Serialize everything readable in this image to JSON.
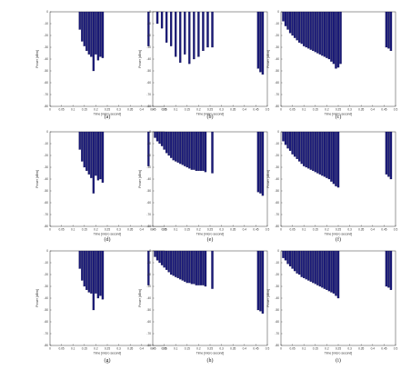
{
  "chart_data": [
    {
      "type": "bar",
      "caption": "(a)",
      "xlabel": "Time [micro second]",
      "ylabel": "Power [dBm]",
      "xlim": [
        0,
        0.5
      ],
      "ylim": [
        -80,
        0
      ],
      "xticks": [
        "0",
        "0.05",
        "0.1",
        "0.15",
        "0.2",
        "0.25",
        "0.3",
        "0.35",
        "0.4",
        "0.45",
        "0.5"
      ],
      "yticks": [
        "0",
        "-10",
        "-20",
        "-30",
        "-40",
        "-50",
        "-60",
        "-70",
        "-80"
      ],
      "x": [
        0.13,
        0.14,
        0.15,
        0.16,
        0.17,
        0.18,
        0.19,
        0.2,
        0.21,
        0.22,
        0.23,
        0.43
      ],
      "values": [
        -15,
        -25,
        -29,
        -33,
        -36,
        -38,
        -50,
        -36,
        -41,
        -38,
        -39,
        -29
      ]
    },
    {
      "type": "bar",
      "caption": "(b)",
      "xlabel": "Time [micro second]",
      "ylabel": "Power [dBm]",
      "xlim": [
        0,
        0.5
      ],
      "ylim": [
        -80,
        0
      ],
      "xticks": [
        "0",
        "0.05",
        "0.1",
        "0.15",
        "0.2",
        "0.25",
        "0.3",
        "0.35",
        "0.4",
        "0.45",
        "0.5"
      ],
      "yticks": [
        "0",
        "-10",
        "-20",
        "-30",
        "-40",
        "-50",
        "-60",
        "-70",
        "-80"
      ],
      "x": [
        0.02,
        0.04,
        0.06,
        0.08,
        0.1,
        0.12,
        0.14,
        0.16,
        0.18,
        0.2,
        0.22,
        0.24,
        0.26,
        0.46,
        0.47,
        0.48
      ],
      "values": [
        -10,
        -14,
        -26,
        -29,
        -38,
        -43,
        -36,
        -44,
        -40,
        -38,
        -33,
        -30,
        -30,
        -48,
        -51,
        -53
      ]
    },
    {
      "type": "bar",
      "caption": "(c)",
      "xlabel": "Time [micro second]",
      "ylabel": "Power [dBm]",
      "xlim": [
        0,
        0.5
      ],
      "ylim": [
        -80,
        0
      ],
      "xticks": [
        "0",
        "0.05",
        "0.1",
        "0.15",
        "0.2",
        "0.25",
        "0.3",
        "0.35",
        "0.4",
        "0.45",
        "0.5"
      ],
      "yticks": [
        "0",
        "-10",
        "-20",
        "-30",
        "-40",
        "-50",
        "-60",
        "-70",
        "-80"
      ],
      "x": [
        0.01,
        0.02,
        0.03,
        0.04,
        0.05,
        0.06,
        0.07,
        0.08,
        0.09,
        0.1,
        0.11,
        0.12,
        0.13,
        0.14,
        0.15,
        0.16,
        0.17,
        0.18,
        0.19,
        0.2,
        0.21,
        0.22,
        0.23,
        0.24,
        0.25,
        0.26,
        0.46,
        0.47,
        0.48
      ],
      "values": [
        -8,
        -12,
        -15,
        -18,
        -20,
        -22,
        -24,
        -26,
        -27,
        -29,
        -30,
        -31,
        -32,
        -33,
        -34,
        -35,
        -36,
        -37,
        -38,
        -39,
        -40,
        -42,
        -44,
        -48,
        -47,
        -44,
        -30,
        -31,
        -33
      ]
    },
    {
      "type": "bar",
      "caption": "(d)",
      "xlabel": "Time [micro second]",
      "ylabel": "Power [dBm]",
      "xlim": [
        0,
        0.5
      ],
      "ylim": [
        -80,
        0
      ],
      "xticks": [
        "0",
        "0.05",
        "0.1",
        "0.15",
        "0.2",
        "0.25",
        "0.3",
        "0.35",
        "0.4",
        "0.45",
        "0.5"
      ],
      "yticks": [
        "0",
        "-10",
        "-20",
        "-30",
        "-40",
        "-50",
        "-60",
        "-70",
        "-80"
      ],
      "x": [
        0.13,
        0.14,
        0.15,
        0.16,
        0.17,
        0.18,
        0.19,
        0.2,
        0.21,
        0.22,
        0.23,
        0.43
      ],
      "values": [
        -15,
        -25,
        -30,
        -33,
        -36,
        -39,
        -52,
        -37,
        -41,
        -40,
        -43,
        -29
      ]
    },
    {
      "type": "bar",
      "caption": "(e)",
      "xlabel": "Time [micro second]",
      "ylabel": "Power [dBm]",
      "xlim": [
        0,
        0.5
      ],
      "ylim": [
        -80,
        0
      ],
      "xticks": [
        "0",
        "0.05",
        "0.1",
        "0.15",
        "0.2",
        "0.25",
        "0.3",
        "0.35",
        "0.4",
        "0.45",
        "0.5"
      ],
      "yticks": [
        "0",
        "-10",
        "-20",
        "-30",
        "-40",
        "-50",
        "-60",
        "-70",
        "-80"
      ],
      "x": [
        0.01,
        0.02,
        0.03,
        0.04,
        0.05,
        0.06,
        0.07,
        0.08,
        0.09,
        0.1,
        0.11,
        0.12,
        0.13,
        0.14,
        0.15,
        0.16,
        0.17,
        0.18,
        0.19,
        0.2,
        0.21,
        0.22,
        0.23,
        0.26,
        0.46,
        0.47,
        0.48
      ],
      "values": [
        -5,
        -8,
        -10,
        -12,
        -15,
        -18,
        -20,
        -22,
        -24,
        -25,
        -26,
        -27,
        -28,
        -29,
        -30,
        -31,
        -32,
        -32,
        -33,
        -33,
        -33,
        -33,
        -34,
        -35,
        -51,
        -52,
        -54
      ]
    },
    {
      "type": "bar",
      "caption": "(f)",
      "xlabel": "Time [micro second]",
      "ylabel": "Power [dBm]",
      "xlim": [
        0,
        0.5
      ],
      "ylim": [
        -80,
        0
      ],
      "xticks": [
        "0",
        "0.05",
        "0.1",
        "0.15",
        "0.2",
        "0.25",
        "0.3",
        "0.35",
        "0.4",
        "0.45",
        "0.5"
      ],
      "yticks": [
        "0",
        "-10",
        "-20",
        "-30",
        "-40",
        "-50",
        "-60",
        "-70",
        "-80"
      ],
      "x": [
        0.01,
        0.02,
        0.03,
        0.04,
        0.05,
        0.06,
        0.07,
        0.08,
        0.09,
        0.1,
        0.11,
        0.12,
        0.13,
        0.14,
        0.15,
        0.16,
        0.17,
        0.18,
        0.19,
        0.2,
        0.21,
        0.22,
        0.23,
        0.24,
        0.25,
        0.46,
        0.47,
        0.48
      ],
      "values": [
        -8,
        -11,
        -14,
        -16,
        -19,
        -21,
        -23,
        -25,
        -27,
        -29,
        -30,
        -31,
        -32,
        -33,
        -34,
        -35,
        -36,
        -37,
        -38,
        -39,
        -40,
        -42,
        -44,
        -46,
        -47,
        -36,
        -38,
        -40
      ]
    },
    {
      "type": "bar",
      "caption": "(g)",
      "xlabel": "Time [micro second]",
      "ylabel": "Power [dBm]",
      "xlim": [
        0,
        0.5
      ],
      "ylim": [
        -80,
        0
      ],
      "xticks": [
        "0",
        "0.05",
        "0.1",
        "0.15",
        "0.2",
        "0.25",
        "0.3",
        "0.35",
        "0.4",
        "0.45",
        "0.5"
      ],
      "yticks": [
        "0",
        "-10",
        "-20",
        "-30",
        "-40",
        "-50",
        "-60",
        "-70",
        "-80"
      ],
      "x": [
        0.13,
        0.14,
        0.15,
        0.16,
        0.17,
        0.18,
        0.19,
        0.2,
        0.21,
        0.22,
        0.23,
        0.43
      ],
      "values": [
        -15,
        -25,
        -30,
        -33,
        -35,
        -36,
        -50,
        -36,
        -40,
        -38,
        -41,
        -29
      ]
    },
    {
      "type": "bar",
      "caption": "(h)",
      "xlabel": "Time [micro second]",
      "ylabel": "Power [dBm]",
      "xlim": [
        0,
        0.5
      ],
      "ylim": [
        -80,
        0
      ],
      "xticks": [
        "0",
        "0.05",
        "0.1",
        "0.15",
        "0.2",
        "0.25",
        "0.3",
        "0.35",
        "0.4",
        "0.45",
        "0.5"
      ],
      "yticks": [
        "0",
        "-10",
        "-20",
        "-30",
        "-40",
        "-50",
        "-60",
        "-70",
        "-80"
      ],
      "x": [
        0.01,
        0.02,
        0.03,
        0.04,
        0.05,
        0.06,
        0.07,
        0.08,
        0.09,
        0.1,
        0.11,
        0.12,
        0.13,
        0.14,
        0.15,
        0.16,
        0.17,
        0.18,
        0.19,
        0.2,
        0.21,
        0.22,
        0.23,
        0.26,
        0.46,
        0.47,
        0.48
      ],
      "values": [
        -5,
        -8,
        -10,
        -12,
        -14,
        -16,
        -18,
        -20,
        -21,
        -22,
        -23,
        -24,
        -25,
        -26,
        -27,
        -27,
        -28,
        -28,
        -29,
        -29,
        -29,
        -29,
        -30,
        -32,
        -50,
        -51,
        -53
      ]
    },
    {
      "type": "bar",
      "caption": "(i)",
      "xlabel": "Time [micro second]",
      "ylabel": "Power [dBm]",
      "xlim": [
        0,
        0.5
      ],
      "ylim": [
        -80,
        0
      ],
      "xticks": [
        "0",
        "0.05",
        "0.1",
        "0.15",
        "0.2",
        "0.25",
        "0.3",
        "0.35",
        "0.4",
        "0.45",
        "0.5"
      ],
      "yticks": [
        "0",
        "-10",
        "-20",
        "-30",
        "-40",
        "-50",
        "-60",
        "-70",
        "-80"
      ],
      "x": [
        0.01,
        0.02,
        0.03,
        0.04,
        0.05,
        0.06,
        0.07,
        0.08,
        0.09,
        0.1,
        0.11,
        0.12,
        0.13,
        0.14,
        0.15,
        0.16,
        0.17,
        0.18,
        0.19,
        0.2,
        0.21,
        0.22,
        0.23,
        0.24,
        0.25,
        0.46,
        0.47,
        0.48
      ],
      "values": [
        -6,
        -8,
        -11,
        -13,
        -15,
        -17,
        -19,
        -20,
        -22,
        -23,
        -24,
        -25,
        -26,
        -27,
        -28,
        -29,
        -30,
        -31,
        -32,
        -33,
        -34,
        -35,
        -36,
        -38,
        -40,
        -30,
        -31,
        -33
      ]
    }
  ],
  "style": {
    "bar_color": "#1a1a78",
    "axis_color": "#333333",
    "caption_color": "#222222"
  }
}
